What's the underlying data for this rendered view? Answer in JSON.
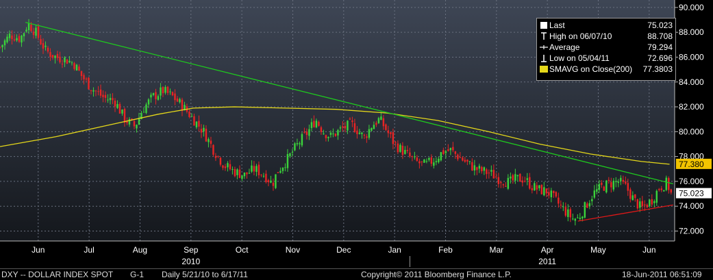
{
  "chart_data": {
    "type": "candlestick",
    "x_labels": [
      {
        "text": "Jun",
        "x": 0.15
      },
      {
        "text": "Jul",
        "x": 1.15
      },
      {
        "text": "Aug",
        "x": 2.15
      },
      {
        "text": "Sep",
        "x": 3.15
      },
      {
        "text": "Oct",
        "x": 4.15
      },
      {
        "text": "Nov",
        "x": 5.15
      },
      {
        "text": "Dec",
        "x": 6.15
      },
      {
        "text": "Jan",
        "x": 7.15
      },
      {
        "text": "Feb",
        "x": 8.15
      },
      {
        "text": "Mar",
        "x": 9.15
      },
      {
        "text": "Apr",
        "x": 10.15
      },
      {
        "text": "May",
        "x": 11.15
      },
      {
        "text": "Jun",
        "x": 12.15
      }
    ],
    "year_labels": [
      {
        "text": "2010",
        "x": 3.15
      },
      {
        "text": "2011",
        "x": 10.15
      }
    ],
    "year_divider_x": 7.45,
    "xlim": [
      -0.6,
      12.65
    ],
    "ylim": [
      71.2,
      90.6
    ],
    "y_ticks": [
      "72.000",
      "74.000",
      "76.000",
      "78.000",
      "80.000",
      "82.000",
      "84.000",
      "86.000",
      "88.000",
      "90.000"
    ],
    "y_tick_values": [
      72,
      74,
      76,
      78,
      80,
      82,
      84,
      86,
      88,
      90
    ],
    "close_path": [
      [
        -0.6,
        86.8
      ],
      [
        -0.4,
        87.8
      ],
      [
        -0.2,
        87.5
      ],
      [
        -0.05,
        88.7
      ],
      [
        0.1,
        88.0
      ],
      [
        0.3,
        86.5
      ],
      [
        0.5,
        86.0
      ],
      [
        0.7,
        85.8
      ],
      [
        0.85,
        85.5
      ],
      [
        1.0,
        84.5
      ],
      [
        1.2,
        83.5
      ],
      [
        1.45,
        82.7
      ],
      [
        1.65,
        82.5
      ],
      [
        1.85,
        81.0
      ],
      [
        2.05,
        80.4
      ],
      [
        2.2,
        81.8
      ],
      [
        2.4,
        82.8
      ],
      [
        2.6,
        83.3
      ],
      [
        2.8,
        82.8
      ],
      [
        3.0,
        82.0
      ],
      [
        3.2,
        81.0
      ],
      [
        3.4,
        80.0
      ],
      [
        3.6,
        78.5
      ],
      [
        3.8,
        77.3
      ],
      [
        4.0,
        76.8
      ],
      [
        4.2,
        76.5
      ],
      [
        4.4,
        77.0
      ],
      [
        4.6,
        76.5
      ],
      [
        4.75,
        75.8
      ],
      [
        4.85,
        76.8
      ],
      [
        5.05,
        77.8
      ],
      [
        5.25,
        79.0
      ],
      [
        5.45,
        80.0
      ],
      [
        5.6,
        81.0
      ],
      [
        5.75,
        80.0
      ],
      [
        5.9,
        79.6
      ],
      [
        6.1,
        80.2
      ],
      [
        6.3,
        80.6
      ],
      [
        6.45,
        80.0
      ],
      [
        6.55,
        79.5
      ],
      [
        6.7,
        80.5
      ],
      [
        6.85,
        81.0
      ],
      [
        6.95,
        80.4
      ],
      [
        7.15,
        79.0
      ],
      [
        7.35,
        78.3
      ],
      [
        7.55,
        77.6
      ],
      [
        7.75,
        77.3
      ],
      [
        7.95,
        77.8
      ],
      [
        8.1,
        78.4
      ],
      [
        8.25,
        78.5
      ],
      [
        8.4,
        78.0
      ],
      [
        8.6,
        77.4
      ],
      [
        8.75,
        77.0
      ],
      [
        8.9,
        76.8
      ],
      [
        9.05,
        76.6
      ],
      [
        9.2,
        76.2
      ],
      [
        9.4,
        75.9
      ],
      [
        9.55,
        76.2
      ],
      [
        9.7,
        76.2
      ],
      [
        9.85,
        75.6
      ],
      [
        10.0,
        75.3
      ],
      [
        10.15,
        75.2
      ],
      [
        10.3,
        74.5
      ],
      [
        10.5,
        73.6
      ],
      [
        10.65,
        73.0
      ],
      [
        10.75,
        73.0
      ],
      [
        10.9,
        74.0
      ],
      [
        11.05,
        75.0
      ],
      [
        11.2,
        75.5
      ],
      [
        11.35,
        75.8
      ],
      [
        11.55,
        76.0
      ],
      [
        11.7,
        75.5
      ],
      [
        11.85,
        74.5
      ],
      [
        12.0,
        73.8
      ],
      [
        12.2,
        74.5
      ],
      [
        12.35,
        75.5
      ],
      [
        12.5,
        75.9
      ],
      [
        12.58,
        75.0
      ]
    ],
    "sma200": [
      [
        -0.6,
        78.8
      ],
      [
        0.5,
        79.6
      ],
      [
        1.5,
        80.5
      ],
      [
        2.5,
        81.4
      ],
      [
        3.2,
        81.9
      ],
      [
        4.0,
        82.0
      ],
      [
        5.0,
        81.9
      ],
      [
        6.0,
        81.8
      ],
      [
        7.0,
        81.5
      ],
      [
        8.0,
        80.9
      ],
      [
        9.0,
        80.0
      ],
      [
        10.0,
        79.0
      ],
      [
        11.0,
        78.2
      ],
      [
        12.0,
        77.6
      ],
      [
        12.55,
        77.38
      ]
    ],
    "trendline_down": [
      [
        -0.1,
        88.8
      ],
      [
        12.62,
        75.8
      ]
    ],
    "trendline_up": [
      [
        10.75,
        72.8
      ],
      [
        12.62,
        74.1
      ]
    ],
    "colors": {
      "up": "#3bd23b",
      "down": "#e82424",
      "sma": "#e5d81a",
      "trend_down": "#1ec81e",
      "trend_up": "#e01818",
      "axis_text": "#ffffff"
    },
    "last_value_box": "75.023",
    "sma_value_box": "77.380"
  },
  "legend": {
    "rows": [
      {
        "symbol": "square-icon",
        "label": "Last",
        "value": "75.023"
      },
      {
        "symbol": "high-marker-icon",
        "label": "High on 06/07/10",
        "value": "88.708"
      },
      {
        "symbol": "average-marker-icon",
        "label": "Average",
        "value": "79.294"
      },
      {
        "symbol": "low-marker-icon",
        "label": "Low on 05/04/11",
        "value": "72.696"
      },
      {
        "symbol": "sma-swatch-icon",
        "label": "SMAVG on Close(200)",
        "value": "77.3803"
      }
    ]
  },
  "footer": {
    "ticker": "DXY -- DOLLAR INDEX SPOT",
    "grid": "G-1",
    "range": "Daily  5/21/10 to 6/17/11",
    "copyright": "Copyright© 2011 Bloomberg Finance L.P.",
    "timestamp": "18-Jun-2011 06:51:09"
  }
}
